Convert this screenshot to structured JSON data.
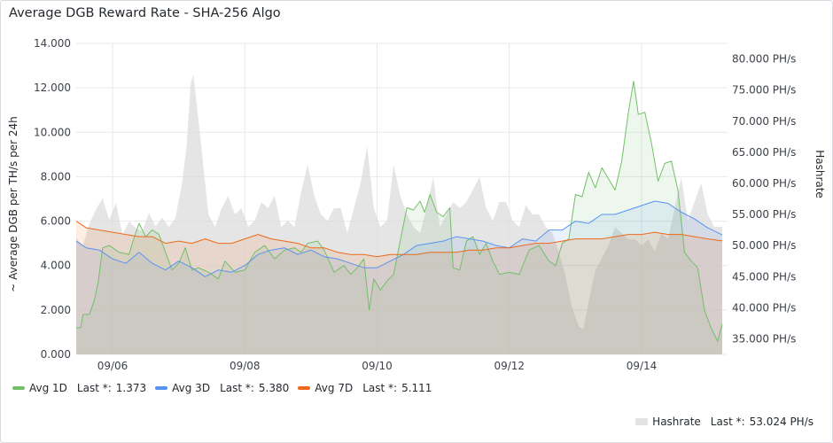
{
  "panel": {
    "title": "Average DGB Reward Rate - SHA-256 Algo"
  },
  "chart_data": {
    "type": "line",
    "title": "Average DGB Reward Rate - SHA-256 Algo",
    "ylabel": "~ Average DGB per TH/s per 24h",
    "y2label": "Hashrate",
    "ylim": [
      0,
      14
    ],
    "y2lim": [
      32500,
      82500
    ],
    "yticks": [
      "0.000",
      "2.000",
      "4.000",
      "6.000",
      "8.000",
      "10.000",
      "12.000",
      "14.000"
    ],
    "y2ticks": [
      "35.000 PH/s",
      "40.000 PH/s",
      "45.000 PH/s",
      "50.000 PH/s",
      "55.000 PH/s",
      "60.000 PH/s",
      "65.000 PH/s",
      "70.000 PH/s",
      "75.000 PH/s",
      "80.000 PH/s"
    ],
    "xlim": [
      5.45,
      15.3
    ],
    "xticks": [
      {
        "label": "09/06",
        "x": 6
      },
      {
        "label": "09/08",
        "x": 8
      },
      {
        "label": "09/10",
        "x": 10
      },
      {
        "label": "09/12",
        "x": 12
      },
      {
        "label": "09/14",
        "x": 14
      }
    ],
    "grid": true,
    "series": [
      {
        "name": "Avg 1D",
        "axis": "left",
        "color": "#73bf69",
        "last": "1.373",
        "points": [
          [
            5.45,
            1.2
          ],
          [
            5.52,
            1.2
          ],
          [
            5.55,
            1.8
          ],
          [
            5.65,
            1.8
          ],
          [
            5.72,
            2.4
          ],
          [
            5.78,
            3.2
          ],
          [
            5.85,
            4.8
          ],
          [
            5.95,
            4.9
          ],
          [
            6.1,
            4.6
          ],
          [
            6.25,
            4.5
          ],
          [
            6.32,
            5.2
          ],
          [
            6.4,
            5.9
          ],
          [
            6.5,
            5.3
          ],
          [
            6.6,
            5.6
          ],
          [
            6.7,
            5.4
          ],
          [
            6.8,
            4.6
          ],
          [
            6.9,
            3.8
          ],
          [
            7.0,
            4.1
          ],
          [
            7.1,
            4.8
          ],
          [
            7.2,
            3.8
          ],
          [
            7.3,
            3.9
          ],
          [
            7.45,
            3.7
          ],
          [
            7.6,
            3.4
          ],
          [
            7.7,
            4.2
          ],
          [
            7.85,
            3.7
          ],
          [
            8.0,
            3.8
          ],
          [
            8.15,
            4.6
          ],
          [
            8.3,
            4.9
          ],
          [
            8.45,
            4.3
          ],
          [
            8.6,
            4.7
          ],
          [
            8.75,
            4.8
          ],
          [
            8.85,
            4.6
          ],
          [
            8.95,
            5.0
          ],
          [
            9.1,
            5.1
          ],
          [
            9.2,
            4.7
          ],
          [
            9.35,
            3.7
          ],
          [
            9.5,
            4.0
          ],
          [
            9.6,
            3.6
          ],
          [
            9.7,
            3.9
          ],
          [
            9.8,
            4.3
          ],
          [
            9.88,
            2.0
          ],
          [
            9.95,
            3.4
          ],
          [
            10.05,
            2.9
          ],
          [
            10.15,
            3.3
          ],
          [
            10.25,
            3.6
          ],
          [
            10.35,
            5.1
          ],
          [
            10.45,
            6.6
          ],
          [
            10.55,
            6.5
          ],
          [
            10.65,
            6.9
          ],
          [
            10.72,
            6.4
          ],
          [
            10.8,
            7.2
          ],
          [
            10.9,
            6.4
          ],
          [
            11.0,
            6.2
          ],
          [
            11.1,
            6.6
          ],
          [
            11.15,
            3.9
          ],
          [
            11.25,
            3.8
          ],
          [
            11.35,
            5.1
          ],
          [
            11.45,
            5.3
          ],
          [
            11.55,
            4.5
          ],
          [
            11.65,
            5.0
          ],
          [
            11.75,
            4.2
          ],
          [
            11.85,
            3.6
          ],
          [
            12.0,
            3.7
          ],
          [
            12.15,
            3.6
          ],
          [
            12.3,
            4.7
          ],
          [
            12.45,
            4.9
          ],
          [
            12.6,
            4.2
          ],
          [
            12.7,
            4.0
          ],
          [
            12.8,
            5.0
          ],
          [
            12.9,
            5.2
          ],
          [
            13.0,
            7.2
          ],
          [
            13.1,
            7.1
          ],
          [
            13.2,
            8.2
          ],
          [
            13.3,
            7.5
          ],
          [
            13.4,
            8.4
          ],
          [
            13.5,
            7.9
          ],
          [
            13.6,
            7.4
          ],
          [
            13.7,
            8.7
          ],
          [
            13.8,
            10.9
          ],
          [
            13.88,
            12.3
          ],
          [
            13.95,
            10.8
          ],
          [
            14.05,
            10.9
          ],
          [
            14.15,
            9.5
          ],
          [
            14.25,
            7.8
          ],
          [
            14.35,
            8.6
          ],
          [
            14.45,
            8.7
          ],
          [
            14.55,
            7.4
          ],
          [
            14.65,
            4.6
          ],
          [
            14.75,
            4.2
          ],
          [
            14.85,
            3.9
          ],
          [
            14.95,
            2.0
          ],
          [
            15.05,
            1.2
          ],
          [
            15.15,
            0.6
          ],
          [
            15.22,
            1.373
          ]
        ]
      },
      {
        "name": "Avg 3D",
        "axis": "left",
        "color": "#5794f2",
        "last": "5.380",
        "points": [
          [
            5.45,
            5.1
          ],
          [
            5.6,
            4.8
          ],
          [
            5.8,
            4.7
          ],
          [
            6.0,
            4.3
          ],
          [
            6.2,
            4.1
          ],
          [
            6.4,
            4.6
          ],
          [
            6.6,
            4.1
          ],
          [
            6.8,
            3.8
          ],
          [
            7.0,
            4.2
          ],
          [
            7.2,
            3.9
          ],
          [
            7.4,
            3.5
          ],
          [
            7.6,
            3.8
          ],
          [
            7.8,
            3.7
          ],
          [
            8.0,
            4.0
          ],
          [
            8.2,
            4.5
          ],
          [
            8.4,
            4.7
          ],
          [
            8.6,
            4.8
          ],
          [
            8.8,
            4.5
          ],
          [
            9.0,
            4.7
          ],
          [
            9.2,
            4.4
          ],
          [
            9.4,
            4.3
          ],
          [
            9.6,
            4.1
          ],
          [
            9.8,
            3.9
          ],
          [
            10.0,
            3.9
          ],
          [
            10.2,
            4.2
          ],
          [
            10.4,
            4.5
          ],
          [
            10.6,
            4.9
          ],
          [
            10.8,
            5.0
          ],
          [
            11.0,
            5.1
          ],
          [
            11.2,
            5.3
          ],
          [
            11.4,
            5.2
          ],
          [
            11.6,
            5.1
          ],
          [
            11.8,
            4.9
          ],
          [
            12.0,
            4.8
          ],
          [
            12.2,
            5.2
          ],
          [
            12.4,
            5.1
          ],
          [
            12.6,
            5.6
          ],
          [
            12.8,
            5.6
          ],
          [
            13.0,
            6.0
          ],
          [
            13.2,
            5.9
          ],
          [
            13.4,
            6.3
          ],
          [
            13.6,
            6.3
          ],
          [
            13.8,
            6.5
          ],
          [
            14.0,
            6.7
          ],
          [
            14.2,
            6.9
          ],
          [
            14.4,
            6.8
          ],
          [
            14.6,
            6.4
          ],
          [
            14.8,
            6.1
          ],
          [
            15.0,
            5.7
          ],
          [
            15.22,
            5.38
          ]
        ]
      },
      {
        "name": "Avg 7D",
        "axis": "left",
        "color": "#ec6a19",
        "last": "5.111",
        "points": [
          [
            5.45,
            6.0
          ],
          [
            5.6,
            5.7
          ],
          [
            5.8,
            5.6
          ],
          [
            6.0,
            5.5
          ],
          [
            6.2,
            5.4
          ],
          [
            6.4,
            5.3
          ],
          [
            6.6,
            5.3
          ],
          [
            6.8,
            5.0
          ],
          [
            7.0,
            5.1
          ],
          [
            7.2,
            5.0
          ],
          [
            7.4,
            5.2
          ],
          [
            7.6,
            5.0
          ],
          [
            7.8,
            5.0
          ],
          [
            8.0,
            5.2
          ],
          [
            8.2,
            5.4
          ],
          [
            8.4,
            5.2
          ],
          [
            8.6,
            5.1
          ],
          [
            8.8,
            5.0
          ],
          [
            9.0,
            4.8
          ],
          [
            9.2,
            4.8
          ],
          [
            9.4,
            4.6
          ],
          [
            9.6,
            4.5
          ],
          [
            9.8,
            4.5
          ],
          [
            10.0,
            4.4
          ],
          [
            10.2,
            4.5
          ],
          [
            10.4,
            4.5
          ],
          [
            10.6,
            4.5
          ],
          [
            10.8,
            4.6
          ],
          [
            11.0,
            4.6
          ],
          [
            11.2,
            4.6
          ],
          [
            11.4,
            4.7
          ],
          [
            11.6,
            4.7
          ],
          [
            11.8,
            4.8
          ],
          [
            12.0,
            4.8
          ],
          [
            12.2,
            4.9
          ],
          [
            12.4,
            5.0
          ],
          [
            12.6,
            5.0
          ],
          [
            12.8,
            5.1
          ],
          [
            13.0,
            5.2
          ],
          [
            13.2,
            5.2
          ],
          [
            13.4,
            5.2
          ],
          [
            13.6,
            5.3
          ],
          [
            13.8,
            5.4
          ],
          [
            14.0,
            5.4
          ],
          [
            14.2,
            5.5
          ],
          [
            14.4,
            5.4
          ],
          [
            14.6,
            5.4
          ],
          [
            14.8,
            5.3
          ],
          [
            15.0,
            5.2
          ],
          [
            15.22,
            5.111
          ]
        ]
      },
      {
        "name": "Hashrate",
        "axis": "right",
        "color": "#c9c9c9",
        "last": "53.024 PH/s",
        "points": [
          [
            5.45,
            51.2
          ],
          [
            5.55,
            50.0
          ],
          [
            5.65,
            53.5
          ],
          [
            5.75,
            55.8
          ],
          [
            5.85,
            57.6
          ],
          [
            5.95,
            54.1
          ],
          [
            6.05,
            56.9
          ],
          [
            6.15,
            51.8
          ],
          [
            6.25,
            53.9
          ],
          [
            6.35,
            52.8
          ],
          [
            6.45,
            52.3
          ],
          [
            6.55,
            55.2
          ],
          [
            6.65,
            53.1
          ],
          [
            6.75,
            54.5
          ],
          [
            6.85,
            53.0
          ],
          [
            6.95,
            54.4
          ],
          [
            7.05,
            60.0
          ],
          [
            7.12,
            66.0
          ],
          [
            7.18,
            76.0
          ],
          [
            7.22,
            77.5
          ],
          [
            7.28,
            72.0
          ],
          [
            7.35,
            65.0
          ],
          [
            7.45,
            55.0
          ],
          [
            7.55,
            53.0
          ],
          [
            7.65,
            56.0
          ],
          [
            7.75,
            58.0
          ],
          [
            7.85,
            55.0
          ],
          [
            7.95,
            56.0
          ],
          [
            8.05,
            53.0
          ],
          [
            8.15,
            54.0
          ],
          [
            8.25,
            57.0
          ],
          [
            8.35,
            56.0
          ],
          [
            8.45,
            58.0
          ],
          [
            8.55,
            53.0
          ],
          [
            8.65,
            54.0
          ],
          [
            8.75,
            53.0
          ],
          [
            8.85,
            58.5
          ],
          [
            8.95,
            63.0
          ],
          [
            9.05,
            58.0
          ],
          [
            9.15,
            55.0
          ],
          [
            9.25,
            54.0
          ],
          [
            9.35,
            56.0
          ],
          [
            9.45,
            56.0
          ],
          [
            9.55,
            52.0
          ],
          [
            9.65,
            56.0
          ],
          [
            9.75,
            60.0
          ],
          [
            9.85,
            66.0
          ],
          [
            9.95,
            56.0
          ],
          [
            10.05,
            53.0
          ],
          [
            10.15,
            54.0
          ],
          [
            10.25,
            63.0
          ],
          [
            10.35,
            58.0
          ],
          [
            10.45,
            55.0
          ],
          [
            10.55,
            53.0
          ],
          [
            10.65,
            52.0
          ],
          [
            10.75,
            56.0
          ],
          [
            10.85,
            61.0
          ],
          [
            10.95,
            53.0
          ],
          [
            11.05,
            55.0
          ],
          [
            11.15,
            57.0
          ],
          [
            11.25,
            56.0
          ],
          [
            11.35,
            57.0
          ],
          [
            11.45,
            59.0
          ],
          [
            11.55,
            61.0
          ],
          [
            11.65,
            56.0
          ],
          [
            11.75,
            54.0
          ],
          [
            11.85,
            57.0
          ],
          [
            11.95,
            57.0
          ],
          [
            12.05,
            54.0
          ],
          [
            12.15,
            53.0
          ],
          [
            12.25,
            56.5
          ],
          [
            12.35,
            55.0
          ],
          [
            12.45,
            55.0
          ],
          [
            12.55,
            53.0
          ],
          [
            12.65,
            52.0
          ],
          [
            12.75,
            49.0
          ],
          [
            12.85,
            45.0
          ],
          [
            12.95,
            40.0
          ],
          [
            13.05,
            37.0
          ],
          [
            13.12,
            36.5
          ],
          [
            13.2,
            41.0
          ],
          [
            13.3,
            46.0
          ],
          [
            13.4,
            48.0
          ],
          [
            13.5,
            50.0
          ],
          [
            13.6,
            53.0
          ],
          [
            13.7,
            52.0
          ],
          [
            13.8,
            51.0
          ],
          [
            13.9,
            51.0
          ],
          [
            14.0,
            50.0
          ],
          [
            14.1,
            51.0
          ],
          [
            14.2,
            49.0
          ],
          [
            14.3,
            52.0
          ],
          [
            14.4,
            51.0
          ],
          [
            14.5,
            56.0
          ],
          [
            14.6,
            61.0
          ],
          [
            14.7,
            54.0
          ],
          [
            14.8,
            57.0
          ],
          [
            14.9,
            60.0
          ],
          [
            15.0,
            55.0
          ],
          [
            15.1,
            53.0
          ],
          [
            15.22,
            53.024
          ]
        ]
      }
    ]
  },
  "legend": {
    "items": [
      {
        "name": "Avg 1D",
        "last_label": "Last *:",
        "last": "1.373"
      },
      {
        "name": "Avg 3D",
        "last_label": "Last *:",
        "last": "5.380"
      },
      {
        "name": "Avg 7D",
        "last_label": "Last *:",
        "last": "5.111"
      }
    ],
    "hashrate": {
      "name": "Hashrate",
      "last_label": "Last *:",
      "last": "53.024 PH/s"
    }
  }
}
